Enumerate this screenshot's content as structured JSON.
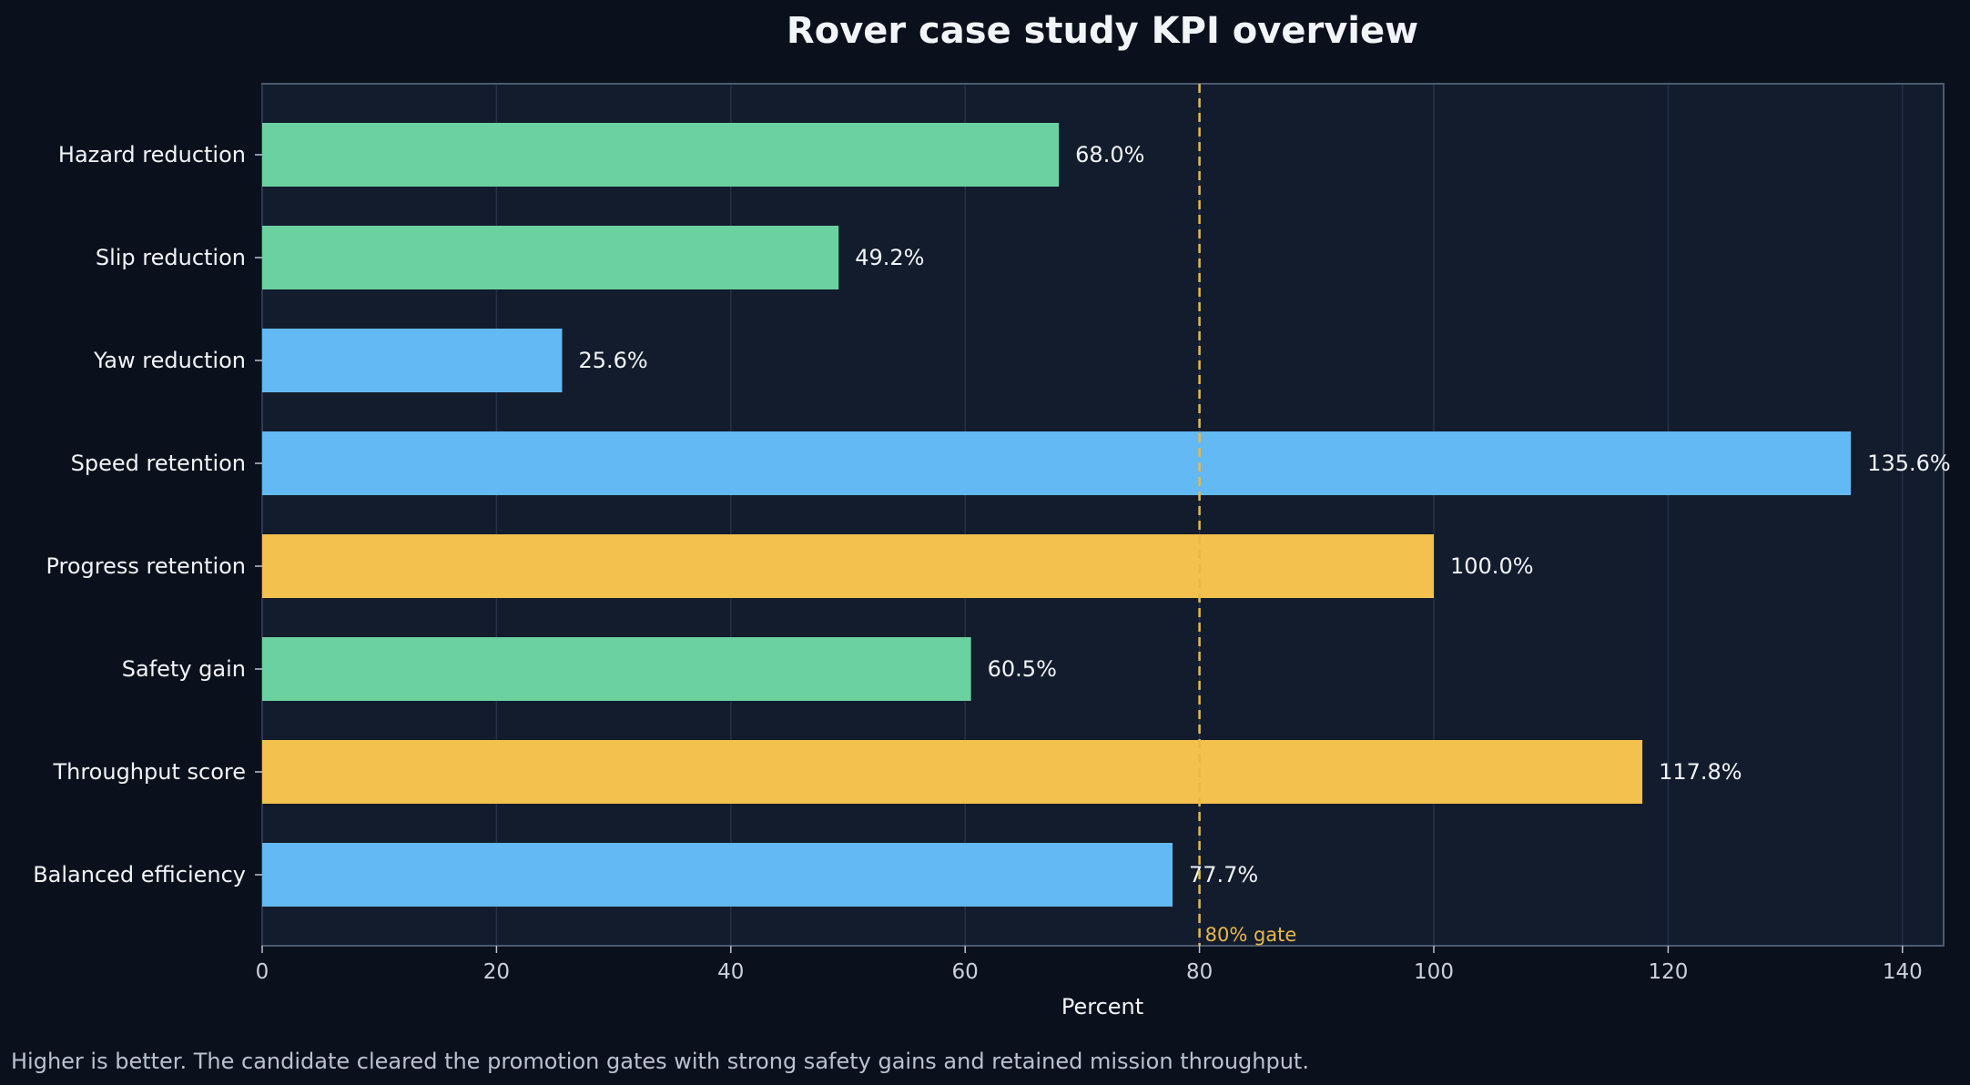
{
  "chart_data": {
    "type": "bar",
    "orientation": "horizontal",
    "title": "Rover case study KPI overview",
    "xlabel": "Percent",
    "ylabel": "",
    "xlim": [
      0,
      143
    ],
    "xticks": [
      0,
      20,
      40,
      60,
      80,
      100,
      120,
      140
    ],
    "grid": "vertical",
    "categories": [
      "Hazard reduction",
      "Slip reduction",
      "Yaw reduction",
      "Speed retention",
      "Progress retention",
      "Safety gain",
      "Throughput score",
      "Balanced efficiency"
    ],
    "values": [
      68.0,
      49.2,
      25.6,
      135.6,
      100.0,
      60.5,
      117.8,
      77.7
    ],
    "data_labels": [
      "68.0%",
      "49.2%",
      "25.6%",
      "135.6%",
      "100.0%",
      "60.5%",
      "117.8%",
      "77.7%"
    ],
    "bar_colors": [
      "#6bd1a0",
      "#6bd1a0",
      "#63b9f3",
      "#63b9f3",
      "#f2c14e",
      "#6bd1a0",
      "#f2c14e",
      "#63b9f3"
    ],
    "reference_line": {
      "value": 80,
      "label": "80% gate",
      "color": "#e8b84a"
    },
    "footnote": "Higher is better. The candidate cleared the promotion gates with strong safety gains and retained mission throughput."
  },
  "colors": {
    "background": "#0b111c",
    "plot_background": "#131c2d",
    "text": "#f2f5f8",
    "muted_text": "#b9c3d0"
  }
}
